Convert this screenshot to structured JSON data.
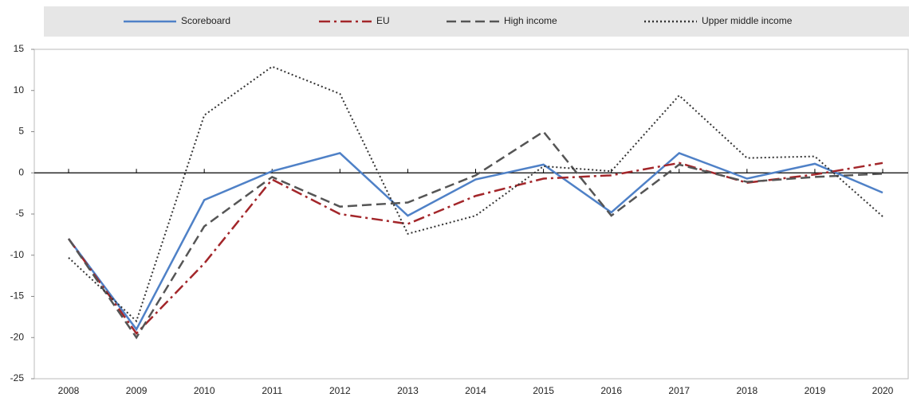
{
  "chart_data": {
    "type": "line",
    "categories": [
      "2008",
      "2009",
      "2010",
      "2011",
      "2012",
      "2013",
      "2014",
      "2015",
      "2016",
      "2017",
      "2018",
      "2019",
      "2020"
    ],
    "series": [
      {
        "name": "Scoreboard",
        "color": "#4f81c7",
        "dash": "solid",
        "values": [
          -8,
          -19,
          -3.3,
          0.2,
          2.4,
          -5.2,
          -0.8,
          1,
          -4.8,
          2.4,
          -0.7,
          1.1,
          -2.4
        ]
      },
      {
        "name": "EU",
        "color": "#a3262a",
        "dash": "dashdot",
        "values": [
          -8,
          -19.5,
          -11,
          -0.8,
          -5,
          -6.2,
          -2.8,
          -0.7,
          -0.3,
          1.2,
          -1.2,
          -0.2,
          1.2
        ]
      },
      {
        "name": "High income",
        "color": "#555555",
        "dash": "dash",
        "values": [
          -8,
          -20,
          -6.5,
          -0.5,
          -4.1,
          -3.6,
          -0.3,
          5,
          -5.2,
          1,
          -1.1,
          -0.5,
          -0.1
        ]
      },
      {
        "name": "Upper middle income",
        "color": "#333333",
        "dash": "dot",
        "values": [
          -10.3,
          -18,
          7,
          12.9,
          9.6,
          -7.4,
          -5.2,
          0.8,
          0.2,
          9.4,
          1.8,
          2,
          -5.3
        ]
      }
    ],
    "ylim": [
      -25,
      15
    ],
    "yticks": [
      -25,
      -20,
      -15,
      -10,
      -5,
      0,
      5,
      10,
      15
    ],
    "legend": "top"
  }
}
